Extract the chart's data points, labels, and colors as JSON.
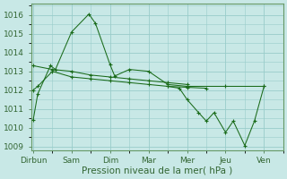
{
  "background_color": "#c8e8e6",
  "grid_color": "#99ccca",
  "line_color": "#1a6b1a",
  "x_labels": [
    "Dirbun",
    "Sam",
    "Dim",
    "Mar",
    "Mer",
    "Jeu",
    "Ven"
  ],
  "x_ticks": [
    0,
    1,
    2,
    3,
    4,
    5,
    6
  ],
  "xlabel": "Pression niveau de la mer( hPa )",
  "ylim": [
    1008.8,
    1016.6
  ],
  "yticks": [
    1009,
    1010,
    1011,
    1012,
    1013,
    1014,
    1015,
    1016
  ],
  "xlim": [
    -0.05,
    6.5
  ],
  "series": [
    [
      1010.4,
      1011.8,
      1013.3,
      1013.1,
      1015.1,
      1016.05,
      1015.55,
      1013.35,
      1012.75,
      1013.1,
      1013.0,
      1012.3,
      1012.2,
      1012.2,
      1012.2
    ],
    [
      1012.0,
      1012.2,
      1013.0,
      1012.7,
      1012.6,
      1012.5,
      1012.4,
      1012.3,
      1012.2,
      1012.15,
      1012.1
    ],
    [
      1013.3,
      1013.1,
      1013.0,
      1012.8,
      1012.7,
      1012.6,
      1012.5,
      1012.4,
      1012.3
    ],
    [
      1012.2,
      1012.1,
      1011.5,
      1010.8,
      1010.35,
      1010.8,
      1009.75,
      1010.35,
      1009.05,
      1010.35,
      1012.2
    ]
  ],
  "series_x": [
    [
      0.0,
      0.12,
      0.45,
      0.58,
      1.0,
      1.45,
      1.62,
      2.0,
      2.12,
      2.5,
      3.0,
      3.5,
      4.0,
      5.0,
      6.0
    ],
    [
      0.0,
      0.12,
      0.5,
      1.0,
      1.5,
      2.0,
      2.5,
      3.0,
      3.5,
      4.0,
      4.5
    ],
    [
      0.0,
      0.5,
      1.0,
      1.5,
      2.0,
      2.5,
      3.0,
      3.5,
      4.0
    ],
    [
      3.5,
      3.8,
      4.0,
      4.3,
      4.5,
      4.7,
      5.0,
      5.2,
      5.5,
      5.75,
      6.0
    ]
  ],
  "tick_fontsize": 6.5,
  "tick_color": "#336633",
  "xlabel_fontsize": 7.5,
  "spine_color": "#669966"
}
